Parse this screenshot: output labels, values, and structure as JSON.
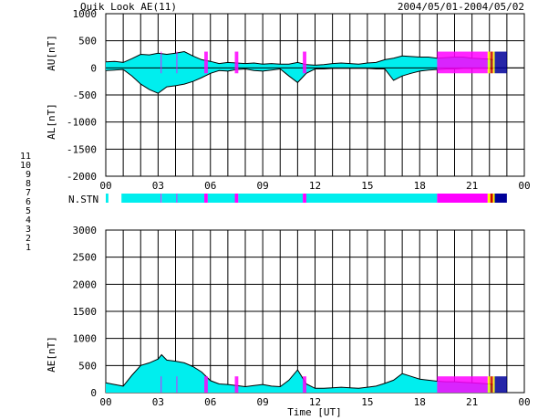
{
  "header": {
    "title": "Quik Look AE(11)",
    "date_range": "2004/05/01-2004/05/02"
  },
  "chart_data": [
    {
      "type": "area",
      "panel": "upper",
      "ylabel_top": "AU[nT]",
      "ylabel_bottom": "AL[nT]",
      "ylim": [
        -2000,
        1000
      ],
      "yticks": [
        1000,
        500,
        0,
        -500,
        -1000,
        -1500,
        -2000
      ],
      "xlim": [
        0,
        24
      ],
      "xticks": [
        "00",
        "03",
        "06",
        "09",
        "12",
        "15",
        "18",
        "21",
        "00"
      ],
      "grid": true,
      "series": [
        {
          "name": "AU",
          "x": [
            0,
            0.5,
            1,
            1.5,
            2,
            2.5,
            3,
            3.5,
            4,
            4.5,
            5,
            5.5,
            6,
            6.5,
            7,
            7.5,
            8,
            8.5,
            9,
            9.5,
            10,
            10.5,
            11,
            11.5,
            12,
            12.5,
            13,
            13.5,
            14,
            14.5,
            15,
            15.5,
            16,
            16.5,
            17,
            17.5,
            18,
            18.5,
            19,
            19.5,
            20,
            20.5,
            21,
            21.5,
            22,
            22.2
          ],
          "values": [
            110,
            120,
            100,
            170,
            250,
            240,
            270,
            250,
            270,
            300,
            220,
            150,
            120,
            80,
            100,
            90,
            80,
            90,
            70,
            80,
            70,
            70,
            100,
            60,
            50,
            60,
            80,
            90,
            80,
            70,
            90,
            100,
            150,
            180,
            220,
            210,
            200,
            200,
            180,
            190,
            200,
            200,
            180,
            170,
            160,
            150
          ]
        },
        {
          "name": "AL",
          "x": [
            0,
            0.5,
            1,
            1.5,
            2,
            2.5,
            3,
            3.5,
            4,
            4.5,
            5,
            5.5,
            6,
            6.5,
            7,
            7.5,
            8,
            8.5,
            9,
            9.5,
            10,
            10.5,
            11,
            11.5,
            12,
            12.5,
            13,
            13.5,
            14,
            14.5,
            15,
            15.5,
            16,
            16.5,
            17,
            17.5,
            18,
            18.5,
            19,
            19.5,
            20,
            20.5,
            21,
            21.5,
            22,
            22.2
          ],
          "values": [
            -50,
            -40,
            -30,
            -150,
            -300,
            -400,
            -470,
            -350,
            -330,
            -300,
            -250,
            -180,
            -100,
            -50,
            -60,
            -30,
            -20,
            -50,
            -60,
            -40,
            -20,
            -150,
            -270,
            -100,
            -20,
            -20,
            -10,
            -10,
            -10,
            -10,
            -10,
            -20,
            -20,
            -230,
            -150,
            -100,
            -60,
            -40,
            -30,
            -20,
            -20,
            -10,
            -10,
            -10,
            -10,
            -20
          ]
        }
      ]
    },
    {
      "type": "area",
      "panel": "lower",
      "ylabel": "AE[nT]",
      "ylim": [
        0,
        3000
      ],
      "yticks": [
        3000,
        2500,
        2000,
        1500,
        1000,
        500,
        0
      ],
      "xlim": [
        0,
        24
      ],
      "xticks": [
        "00",
        "03",
        "06",
        "09",
        "12",
        "15",
        "18",
        "21",
        "00"
      ],
      "xlabel": "Time [UT]",
      "grid": true,
      "series": [
        {
          "name": "AE",
          "x": [
            0,
            0.5,
            1,
            1.5,
            2,
            2.5,
            3,
            3.2,
            3.5,
            4,
            4.5,
            5,
            5.5,
            6,
            6.5,
            7,
            7.5,
            8,
            8.5,
            9,
            9.5,
            10,
            10.5,
            11,
            11.5,
            12,
            12.5,
            13,
            13.5,
            14,
            14.5,
            15,
            15.5,
            16,
            16.5,
            17,
            17.5,
            18,
            18.5,
            19,
            19.5,
            20,
            20.5,
            21,
            21.5,
            22,
            22.2
          ],
          "values": [
            180,
            150,
            120,
            320,
            500,
            550,
            620,
            700,
            600,
            580,
            550,
            480,
            380,
            220,
            160,
            150,
            130,
            110,
            130,
            150,
            120,
            110,
            230,
            420,
            160,
            80,
            80,
            90,
            100,
            90,
            80,
            100,
            120,
            170,
            230,
            350,
            300,
            250,
            230,
            210,
            200,
            200,
            190,
            180,
            170,
            160,
            150
          ]
        }
      ]
    }
  ],
  "station_bar": {
    "label": "N.STN",
    "legend_numbers": [
      "11",
      "10",
      "9",
      "8",
      "7",
      "6",
      "5",
      "4",
      "3",
      "2",
      "1"
    ],
    "legend_colors": [
      "#00eeee",
      "#ff00ff",
      "#0000cc",
      "#ffff00",
      "#c0c000",
      "#cc0000",
      "#c0c0c0",
      "#808080",
      "#009999",
      "#880088",
      "#000099"
    ],
    "segments": [
      {
        "start": 0,
        "end": 0.15,
        "stations": 11
      },
      {
        "start": 0.15,
        "end": 0.9,
        "stations": 0
      },
      {
        "start": 0.9,
        "end": 3.15,
        "stations": 11
      },
      {
        "start": 3.15,
        "end": 3.2,
        "stations": 10
      },
      {
        "start": 3.2,
        "end": 4.05,
        "stations": 11
      },
      {
        "start": 4.05,
        "end": 4.1,
        "stations": 10
      },
      {
        "start": 4.1,
        "end": 5.65,
        "stations": 11
      },
      {
        "start": 5.65,
        "end": 5.85,
        "stations": 10
      },
      {
        "start": 5.85,
        "end": 7.4,
        "stations": 11
      },
      {
        "start": 7.4,
        "end": 7.6,
        "stations": 10
      },
      {
        "start": 7.6,
        "end": 11.3,
        "stations": 11
      },
      {
        "start": 11.3,
        "end": 11.5,
        "stations": 10
      },
      {
        "start": 11.5,
        "end": 19.0,
        "stations": 11
      },
      {
        "start": 19.0,
        "end": 21.9,
        "stations": 10
      },
      {
        "start": 21.9,
        "end": 22.05,
        "stations": 8
      },
      {
        "start": 22.05,
        "end": 22.2,
        "stations": 6
      },
      {
        "start": 22.2,
        "end": 22.3,
        "stations": 8
      },
      {
        "start": 22.3,
        "end": 23.0,
        "stations": 1
      }
    ]
  },
  "colors": {
    "fill": "#00eeee",
    "alt_fill": "#ff00ff",
    "grid": "#000000",
    "line": "#000000"
  }
}
